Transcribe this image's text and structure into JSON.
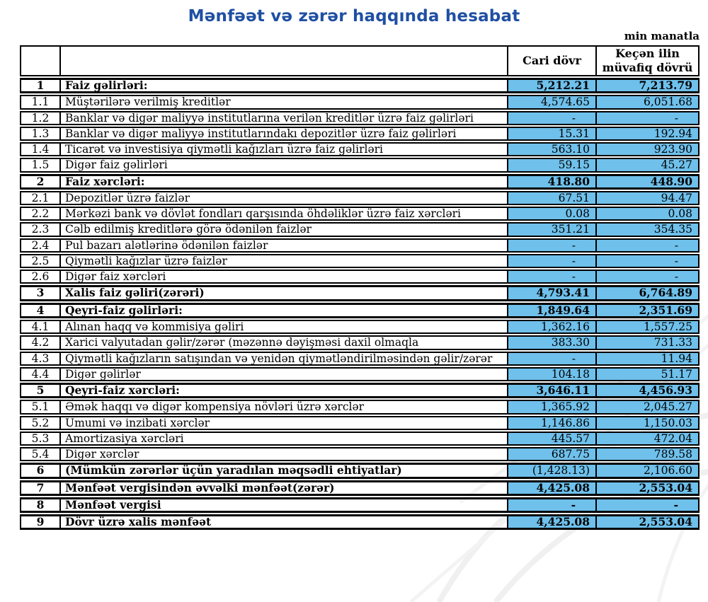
{
  "title": "Mənfəət və zərər haqqında hesabat",
  "unit_note": "min manatla",
  "colors": {
    "title_blue": "#1F4FA3",
    "cell_blue": "#6FC0EB",
    "border_black": "#000000"
  },
  "table": {
    "headers": {
      "current": "Cari dövr",
      "previous": "Keçən ilin müvafiq dövrü"
    },
    "rows": [
      {
        "no": "1",
        "label": "Faiz gəlirləri:",
        "current": "5,212.21",
        "previous": "7,213.79",
        "section": true,
        "values_bold": true
      },
      {
        "no": "1.1",
        "label": "Müştərilərə verilmiş kreditlər",
        "current": "4,574.65",
        "previous": "6,051.68",
        "section": false,
        "values_bold": false
      },
      {
        "no": "1.2",
        "label": "Banklar və digər maliyyə institutlarına verilən kreditlər üzrə faiz gəlirləri",
        "current": "-",
        "previous": "-",
        "section": false,
        "values_bold": false
      },
      {
        "no": "1.3",
        "label": "Banklar və digər maliyyə institutlarındakı depozitlər üzrə faiz gəlirləri",
        "current": "15.31",
        "previous": "192.94",
        "section": false,
        "values_bold": false
      },
      {
        "no": "1.4",
        "label": "Ticarət və investisiya qiymətli kağızları üzrə faiz gəlirləri",
        "current": "563.10",
        "previous": "923.90",
        "section": false,
        "values_bold": false
      },
      {
        "no": "1.5",
        "label": "Digər faiz gəlirləri",
        "current": "59.15",
        "previous": "45.27",
        "section": false,
        "values_bold": false
      },
      {
        "no": "2",
        "label": "Faiz xərcləri:",
        "current": "418.80",
        "previous": "448.90",
        "section": true,
        "values_bold": true
      },
      {
        "no": "2.1",
        "label": "Depozitlər üzrə faizlər",
        "current": "67.51",
        "previous": "94.47",
        "section": false,
        "values_bold": false
      },
      {
        "no": "2.2",
        "label": "Mərkəzi bank və dövlət fondları qarşısında öhdəliklər üzrə faiz xərcləri",
        "current": "0.08",
        "previous": "0.08",
        "section": false,
        "values_bold": false
      },
      {
        "no": "2.3",
        "label": "Cəlb edilmiş kreditlərə görə ödənilən faizlər",
        "current": "351.21",
        "previous": "354.35",
        "section": false,
        "values_bold": false
      },
      {
        "no": "2.4",
        "label": "Pul bazarı alətlərinə ödənilən faizlər",
        "current": "-",
        "previous": "-",
        "section": false,
        "values_bold": false
      },
      {
        "no": "2.5",
        "label": "Qiymətli kağızlar üzrə faizlər",
        "current": "-",
        "previous": "-",
        "section": false,
        "values_bold": false
      },
      {
        "no": "2.6",
        "label": "Digər faiz xərcləri",
        "current": "-",
        "previous": "-",
        "section": false,
        "values_bold": false
      },
      {
        "no": "3",
        "label": "Xalis faiz gəliri(zərəri)",
        "current": "4,793.41",
        "previous": "6,764.89",
        "section": true,
        "values_bold": true
      },
      {
        "no": "4",
        "label": "Qeyri-faiz gəlirləri:",
        "current": "1,849.64",
        "previous": "2,351.69",
        "section": true,
        "values_bold": true
      },
      {
        "no": "4.1",
        "label": "Alınan haqq və kommisiya gəliri",
        "current": "1,362.16",
        "previous": "1,557.25",
        "section": false,
        "values_bold": false
      },
      {
        "no": "4.2",
        "label": "Xarici valyutadan gəlir/zərər (məzənnə dəyişməsi daxil olmaqla",
        "current": "383.30",
        "previous": "731.33",
        "section": false,
        "values_bold": false
      },
      {
        "no": "4.3",
        "label": "Qiymətli kağızların satışından və yenidən qiymətləndirilməsindən gəlir/zərər",
        "current": "-",
        "previous": "11.94",
        "section": false,
        "values_bold": false
      },
      {
        "no": "4.4",
        "label": "Digər gəlirlər",
        "current": "104.18",
        "previous": "51.17",
        "section": false,
        "values_bold": false
      },
      {
        "no": "5",
        "label": "Qeyri-faiz xərcləri:",
        "current": "3,646.11",
        "previous": "4,456.93",
        "section": true,
        "values_bold": true
      },
      {
        "no": "5.1",
        "label": "Əmək haqqı və digər kompensiya növləri üzrə xərclər",
        "current": "1,365.92",
        "previous": "2,045.27",
        "section": false,
        "values_bold": false
      },
      {
        "no": "5.2",
        "label": "Ümumi və inzibati xərclər",
        "current": "1,146.86",
        "previous": "1,150.03",
        "section": false,
        "values_bold": false
      },
      {
        "no": "5.3",
        "label": "Amortizasiya xərcləri",
        "current": "445.57",
        "previous": "472.04",
        "section": false,
        "values_bold": false
      },
      {
        "no": "5.4",
        "label": "Digər xərclər",
        "current": "687.75",
        "previous": "789.58",
        "section": false,
        "values_bold": false
      },
      {
        "no": "6",
        "label": "(Mümkün zərərlər üçün yaradılan məqsədli ehtiyatlar)",
        "current": "(1,428.13)",
        "previous": "2,106.60",
        "section": true,
        "values_bold": false
      },
      {
        "no": "7",
        "label": "Mənfəət vergisindən əvvəlki mənfəət(zərər)",
        "current": "4,425.08",
        "previous": "2,553.04",
        "section": true,
        "values_bold": true
      },
      {
        "no": "8",
        "label": "Mənfəət vergisi",
        "current": "-",
        "previous": "-",
        "section": true,
        "values_bold": true
      },
      {
        "no": "9",
        "label": "Dövr üzrə xalis mənfəət",
        "current": "4,425.08",
        "previous": "2,553.04",
        "section": true,
        "values_bold": true
      }
    ]
  }
}
